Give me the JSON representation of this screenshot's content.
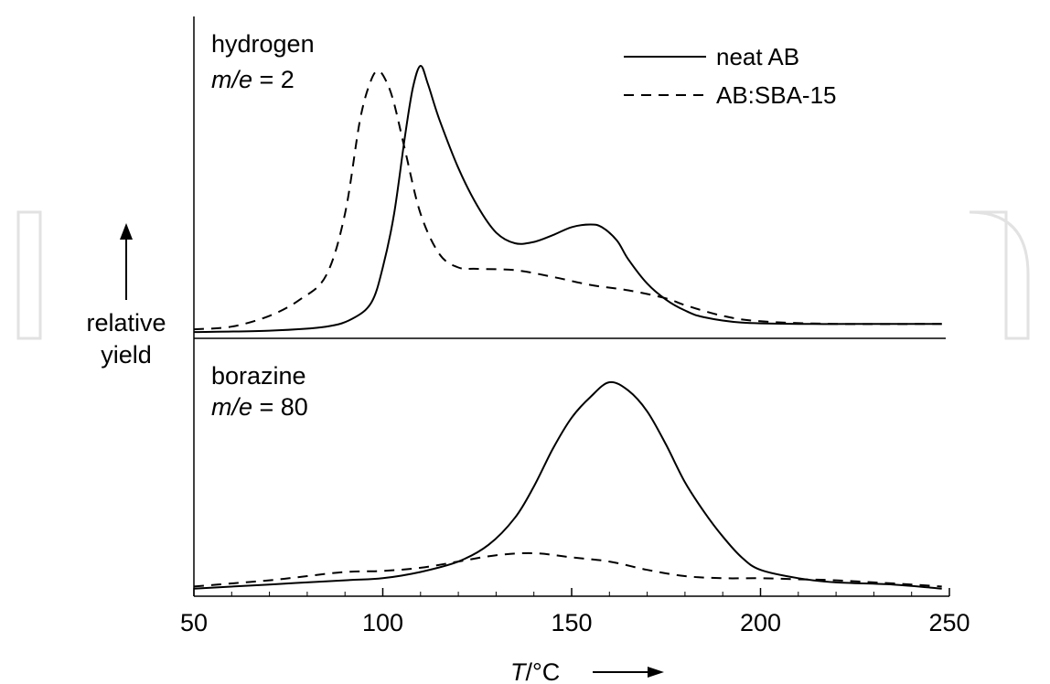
{
  "chart_data": {
    "type": "line",
    "x_axis": {
      "label_var": "T",
      "label_unit": "/°C",
      "range": [
        50,
        250
      ],
      "ticks": [
        50,
        100,
        150,
        200,
        250
      ],
      "tick_labels": [
        "50",
        "100",
        "150",
        "200",
        "250"
      ]
    },
    "y_axis": {
      "label_line1": "relative",
      "label_line2": "yield",
      "ylim": [
        0,
        1
      ]
    },
    "grid": false,
    "legend": {
      "placement": "top-right of upper panel",
      "entries": [
        {
          "label": "neat AB",
          "style": "solid"
        },
        {
          "label": "AB:SBA-15",
          "style": "dashed"
        }
      ]
    },
    "panels": [
      {
        "id": "hydrogen",
        "title": "hydrogen",
        "mass_label_var": "m/e",
        "mass_label_val": " = 2",
        "series": [
          {
            "legend_ref": "neat AB",
            "style": "solid",
            "points": [
              [
                50,
                0.01
              ],
              [
                70,
                0.015
              ],
              [
                85,
                0.03
              ],
              [
                92,
                0.06
              ],
              [
                97,
                0.12
              ],
              [
                100,
                0.25
              ],
              [
                103,
                0.45
              ],
              [
                106,
                0.75
              ],
              [
                108,
                0.92
              ],
              [
                110,
                1.0
              ],
              [
                112,
                0.93
              ],
              [
                115,
                0.8
              ],
              [
                120,
                0.62
              ],
              [
                125,
                0.48
              ],
              [
                130,
                0.38
              ],
              [
                135,
                0.34
              ],
              [
                140,
                0.345
              ],
              [
                145,
                0.37
              ],
              [
                150,
                0.4
              ],
              [
                155,
                0.41
              ],
              [
                158,
                0.4
              ],
              [
                162,
                0.35
              ],
              [
                165,
                0.28
              ],
              [
                170,
                0.19
              ],
              [
                175,
                0.13
              ],
              [
                180,
                0.09
              ],
              [
                185,
                0.065
              ],
              [
                195,
                0.045
              ],
              [
                210,
                0.04
              ],
              [
                230,
                0.04
              ],
              [
                248,
                0.04
              ]
            ]
          },
          {
            "legend_ref": "AB:SBA-15",
            "style": "dashed",
            "points": [
              [
                50,
                0.02
              ],
              [
                60,
                0.03
              ],
              [
                70,
                0.07
              ],
              [
                78,
                0.13
              ],
              [
                85,
                0.22
              ],
              [
                90,
                0.45
              ],
              [
                94,
                0.8
              ],
              [
                97,
                0.95
              ],
              [
                99,
                0.98
              ],
              [
                101,
                0.94
              ],
              [
                103,
                0.86
              ],
              [
                106,
                0.68
              ],
              [
                110,
                0.45
              ],
              [
                115,
                0.3
              ],
              [
                120,
                0.25
              ],
              [
                125,
                0.245
              ],
              [
                135,
                0.24
              ],
              [
                145,
                0.215
              ],
              [
                155,
                0.185
              ],
              [
                165,
                0.165
              ],
              [
                175,
                0.135
              ],
              [
                180,
                0.11
              ],
              [
                190,
                0.07
              ],
              [
                200,
                0.05
              ],
              [
                220,
                0.04
              ],
              [
                248,
                0.04
              ]
            ]
          }
        ]
      },
      {
        "id": "borazine",
        "title": "borazine",
        "mass_label_var": "m/e",
        "mass_label_val": " = 80",
        "series": [
          {
            "legend_ref": "neat AB",
            "style": "solid",
            "points": [
              [
                50,
                0.01
              ],
              [
                70,
                0.03
              ],
              [
                90,
                0.05
              ],
              [
                100,
                0.06
              ],
              [
                110,
                0.09
              ],
              [
                120,
                0.14
              ],
              [
                128,
                0.22
              ],
              [
                135,
                0.35
              ],
              [
                140,
                0.5
              ],
              [
                145,
                0.68
              ],
              [
                150,
                0.83
              ],
              [
                155,
                0.93
              ],
              [
                160,
                1.0
              ],
              [
                165,
                0.96
              ],
              [
                170,
                0.86
              ],
              [
                175,
                0.7
              ],
              [
                180,
                0.52
              ],
              [
                185,
                0.38
              ],
              [
                190,
                0.26
              ],
              [
                195,
                0.16
              ],
              [
                200,
                0.1
              ],
              [
                210,
                0.06
              ],
              [
                220,
                0.04
              ],
              [
                235,
                0.03
              ],
              [
                248,
                0.01
              ]
            ]
          },
          {
            "legend_ref": "AB:SBA-15",
            "style": "dashed",
            "points": [
              [
                50,
                0.02
              ],
              [
                60,
                0.035
              ],
              [
                70,
                0.05
              ],
              [
                80,
                0.07
              ],
              [
                90,
                0.09
              ],
              [
                100,
                0.095
              ],
              [
                110,
                0.11
              ],
              [
                120,
                0.14
              ],
              [
                130,
                0.17
              ],
              [
                140,
                0.18
              ],
              [
                150,
                0.16
              ],
              [
                160,
                0.14
              ],
              [
                170,
                0.1
              ],
              [
                180,
                0.07
              ],
              [
                190,
                0.06
              ],
              [
                200,
                0.06
              ],
              [
                210,
                0.055
              ],
              [
                220,
                0.05
              ],
              [
                230,
                0.04
              ],
              [
                240,
                0.03
              ],
              [
                248,
                0.02
              ]
            ]
          }
        ]
      }
    ]
  }
}
